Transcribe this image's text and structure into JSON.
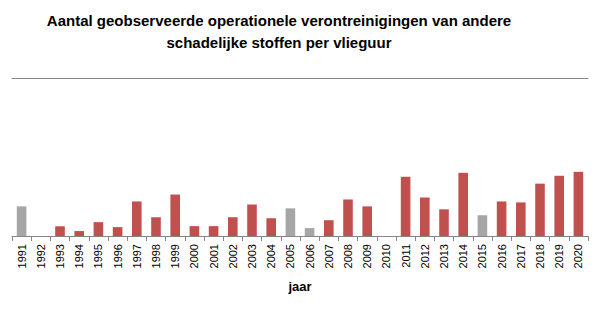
{
  "chart_data": {
    "type": "bar",
    "title": "Aantal geobserveerde operationele verontreinigingen van andere\nschadelijke stoffen per vlieguur",
    "xlabel": "jaar",
    "categories": [
      "1991",
      "1992",
      "1993",
      "1994",
      "1995",
      "1996",
      "1997",
      "1998",
      "1999",
      "2000",
      "2001",
      "2002",
      "2003",
      "2004",
      "2005",
      "2006",
      "2007",
      "2008",
      "2009",
      "2010",
      "2011",
      "2012",
      "2013",
      "2014",
      "2015",
      "2016",
      "2017",
      "2018",
      "2019",
      "2020"
    ],
    "values": [
      30,
      0,
      10,
      5,
      14,
      9,
      35,
      19,
      42,
      10,
      10,
      19,
      32,
      18,
      28,
      8,
      16,
      37,
      30,
      0,
      60,
      39,
      27,
      64,
      21,
      35,
      34,
      53,
      61,
      65
    ],
    "colors": [
      "#a6a6a6",
      "#c0504d",
      "#c0504d",
      "#c0504d",
      "#c0504d",
      "#c0504d",
      "#c0504d",
      "#c0504d",
      "#c0504d",
      "#c0504d",
      "#c0504d",
      "#c0504d",
      "#c0504d",
      "#c0504d",
      "#a6a6a6",
      "#a6a6a6",
      "#c0504d",
      "#c0504d",
      "#c0504d",
      "#c0504d",
      "#c0504d",
      "#c0504d",
      "#c0504d",
      "#c0504d",
      "#a6a6a6",
      "#c0504d",
      "#c0504d",
      "#c0504d",
      "#c0504d",
      "#c0504d"
    ],
    "ylim": [
      0,
      160
    ],
    "grid": false,
    "tick_labels": "x"
  }
}
